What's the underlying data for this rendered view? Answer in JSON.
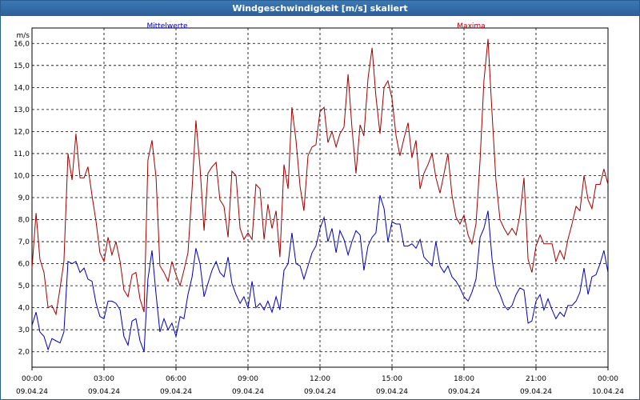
{
  "window": {
    "title": "Windgeschwindigkeit [m/s] skaliert"
  },
  "colors": {
    "mean": "#0000b4",
    "max": "#a00000",
    "grid": "#000000",
    "title_bg": "#2b609a"
  },
  "chart_data": {
    "type": "line",
    "title": "Windgeschwindigkeit [m/s] skaliert",
    "ylabel": "m/s",
    "xlabel": "",
    "ylim": [
      1.3,
      16.7
    ],
    "y_ticks": [
      "2,0",
      "3,0",
      "4,0",
      "5,0",
      "6,0",
      "7,0",
      "8,0",
      "9,0",
      "10,0",
      "11,0",
      "12,0",
      "13,0",
      "14,0",
      "15,0",
      "16,0"
    ],
    "y_tick_values": [
      2,
      3,
      4,
      5,
      6,
      7,
      8,
      9,
      10,
      11,
      12,
      13,
      14,
      15,
      16
    ],
    "xlim": [
      0,
      24
    ],
    "x_ticks": [
      {
        "hours": 0,
        "time": "00:00",
        "date": "09.04.24"
      },
      {
        "hours": 3,
        "time": "03:00",
        "date": "09.04.24"
      },
      {
        "hours": 6,
        "time": "06:00",
        "date": "09.04.24"
      },
      {
        "hours": 9,
        "time": "09:00",
        "date": "09.04.24"
      },
      {
        "hours": 12,
        "time": "12:00",
        "date": "09.04.24"
      },
      {
        "hours": 15,
        "time": "15:00",
        "date": "09.04.24"
      },
      {
        "hours": 18,
        "time": "18:00",
        "date": "09.04.24"
      },
      {
        "hours": 21,
        "time": "21:00",
        "date": "09.04.24"
      },
      {
        "hours": 24,
        "time": "00:00",
        "date": "10.04.24"
      }
    ],
    "grid": true,
    "series": [
      {
        "name": "Mittelwerte",
        "x": [
          0.0,
          0.17,
          0.33,
          0.5,
          0.67,
          0.83,
          1.0,
          1.17,
          1.33,
          1.5,
          1.67,
          1.83,
          2.0,
          2.17,
          2.33,
          2.5,
          2.67,
          2.83,
          3.0,
          3.17,
          3.33,
          3.5,
          3.67,
          3.83,
          4.0,
          4.17,
          4.33,
          4.5,
          4.67,
          4.83,
          5.0,
          5.17,
          5.33,
          5.5,
          5.67,
          5.83,
          6.0,
          6.17,
          6.33,
          6.5,
          6.67,
          6.83,
          7.0,
          7.17,
          7.33,
          7.5,
          7.67,
          7.83,
          8.0,
          8.17,
          8.33,
          8.5,
          8.67,
          8.83,
          9.0,
          9.17,
          9.33,
          9.5,
          9.67,
          9.83,
          10.0,
          10.17,
          10.33,
          10.5,
          10.67,
          10.83,
          11.0,
          11.17,
          11.33,
          11.5,
          11.67,
          11.83,
          12.0,
          12.17,
          12.33,
          12.5,
          12.67,
          12.83,
          13.0,
          13.17,
          13.33,
          13.5,
          13.67,
          13.83,
          14.0,
          14.17,
          14.33,
          14.5,
          14.67,
          14.83,
          15.0,
          15.17,
          15.33,
          15.5,
          15.67,
          15.83,
          16.0,
          16.17,
          16.33,
          16.5,
          16.67,
          16.83,
          17.0,
          17.17,
          17.33,
          17.5,
          17.67,
          17.83,
          18.0,
          18.17,
          18.33,
          18.5,
          18.67,
          18.83,
          19.0,
          19.17,
          19.33,
          19.5,
          19.67,
          19.83,
          20.0,
          20.17,
          20.33,
          20.5,
          20.67,
          20.83,
          21.0,
          21.17,
          21.33,
          21.5,
          21.67,
          21.83,
          22.0,
          22.17,
          22.33,
          22.5,
          22.67,
          22.83,
          23.0,
          23.17,
          23.33,
          23.5,
          23.67,
          23.83,
          24.0
        ],
        "y": [
          3.2,
          3.8,
          2.9,
          2.7,
          2.1,
          2.6,
          2.5,
          2.4,
          2.9,
          6.1,
          6.0,
          6.1,
          5.6,
          5.8,
          5.3,
          5.2,
          4.2,
          3.6,
          3.5,
          4.3,
          4.3,
          4.2,
          3.9,
          2.7,
          2.3,
          3.4,
          3.5,
          2.5,
          2.0,
          5.3,
          6.6,
          4.6,
          2.9,
          3.5,
          3.0,
          3.3,
          2.7,
          3.6,
          3.5,
          4.6,
          5.4,
          6.7,
          6.0,
          4.5,
          5.1,
          5.7,
          6.1,
          5.6,
          5.4,
          6.3,
          5.1,
          4.6,
          4.2,
          4.5,
          4.0,
          5.2,
          4.0,
          4.2,
          3.9,
          4.3,
          3.8,
          4.5,
          3.9,
          5.7,
          6.0,
          7.4,
          6.0,
          5.9,
          5.3,
          5.9,
          6.5,
          6.8,
          7.6,
          8.1,
          7.0,
          7.6,
          6.5,
          7.5,
          7.1,
          6.4,
          7.0,
          7.5,
          7.3,
          5.7,
          6.8,
          7.2,
          7.4,
          9.1,
          8.5,
          7.0,
          7.9,
          7.8,
          7.8,
          6.8,
          6.8,
          6.9,
          6.7,
          7.1,
          6.3,
          6.1,
          5.9,
          7.0,
          5.9,
          5.6,
          5.9,
          5.4,
          5.2,
          4.9,
          4.5,
          4.3,
          4.7,
          5.3,
          7.2,
          7.6,
          8.4,
          6.2,
          5.0,
          4.6,
          4.1,
          3.9,
          4.1,
          4.6,
          4.9,
          4.8,
          3.3,
          3.4,
          4.3,
          4.6,
          3.9,
          4.4,
          3.9,
          3.5,
          3.8,
          3.6,
          4.1,
          4.1,
          4.3,
          4.7,
          5.8,
          4.6,
          5.4,
          5.5,
          6.0,
          6.6,
          5.6
        ]
      },
      {
        "name": "Maxima",
        "x": [
          0.0,
          0.17,
          0.33,
          0.5,
          0.67,
          0.83,
          1.0,
          1.17,
          1.33,
          1.5,
          1.67,
          1.83,
          2.0,
          2.17,
          2.33,
          2.5,
          2.67,
          2.83,
          3.0,
          3.17,
          3.33,
          3.5,
          3.67,
          3.83,
          4.0,
          4.17,
          4.33,
          4.5,
          4.67,
          4.83,
          5.0,
          5.17,
          5.33,
          5.5,
          5.67,
          5.83,
          6.0,
          6.17,
          6.33,
          6.5,
          6.67,
          6.83,
          7.0,
          7.17,
          7.33,
          7.5,
          7.67,
          7.83,
          8.0,
          8.17,
          8.33,
          8.5,
          8.67,
          8.83,
          9.0,
          9.17,
          9.33,
          9.5,
          9.67,
          9.83,
          10.0,
          10.17,
          10.33,
          10.5,
          10.67,
          10.83,
          11.0,
          11.17,
          11.33,
          11.5,
          11.67,
          11.83,
          12.0,
          12.17,
          12.33,
          12.5,
          12.67,
          12.83,
          13.0,
          13.17,
          13.33,
          13.5,
          13.67,
          13.83,
          14.0,
          14.17,
          14.33,
          14.5,
          14.67,
          14.83,
          15.0,
          15.17,
          15.33,
          15.5,
          15.67,
          15.83,
          16.0,
          16.17,
          16.33,
          16.5,
          16.67,
          16.83,
          17.0,
          17.17,
          17.33,
          17.5,
          17.67,
          17.83,
          18.0,
          18.17,
          18.33,
          18.5,
          18.67,
          18.83,
          19.0,
          19.17,
          19.33,
          19.5,
          19.67,
          19.83,
          20.0,
          20.17,
          20.33,
          20.5,
          20.67,
          20.83,
          21.0,
          21.17,
          21.33,
          21.5,
          21.67,
          21.83,
          22.0,
          22.17,
          22.33,
          22.5,
          22.67,
          22.83,
          23.0,
          23.17,
          23.33,
          23.5,
          23.67,
          23.83,
          24.0
        ],
        "y": [
          5.8,
          8.3,
          6.2,
          5.6,
          4.0,
          4.1,
          3.7,
          4.9,
          6.1,
          11.0,
          9.8,
          11.9,
          9.9,
          9.9,
          10.4,
          9.1,
          7.9,
          6.5,
          6.1,
          7.2,
          6.4,
          7.0,
          6.1,
          4.8,
          4.5,
          5.5,
          5.6,
          4.4,
          3.8,
          10.7,
          11.6,
          9.9,
          5.9,
          5.6,
          5.2,
          6.1,
          5.5,
          5.0,
          5.7,
          6.5,
          9.4,
          12.5,
          10.4,
          7.5,
          10.1,
          10.4,
          10.6,
          8.9,
          8.6,
          7.2,
          10.2,
          10.0,
          7.6,
          7.1,
          7.4,
          7.1,
          9.6,
          9.4,
          7.1,
          8.7,
          7.6,
          8.4,
          6.3,
          10.5,
          9.4,
          13.1,
          11.6,
          9.5,
          8.4,
          10.9,
          11.3,
          11.4,
          12.9,
          13.1,
          11.5,
          12.0,
          11.3,
          11.9,
          12.2,
          14.6,
          12.2,
          10.1,
          12.3,
          11.8,
          14.4,
          15.8,
          13.6,
          11.9,
          14.0,
          14.3,
          13.5,
          11.8,
          10.9,
          11.7,
          12.4,
          10.8,
          11.6,
          9.4,
          10.1,
          10.5,
          11.0,
          9.9,
          9.2,
          10.1,
          11.0,
          9.1,
          8.1,
          7.8,
          8.2,
          7.3,
          6.9,
          7.8,
          10.7,
          14.3,
          16.2,
          12.8,
          9.8,
          8.0,
          7.6,
          7.3,
          7.6,
          7.3,
          8.2,
          9.9,
          6.2,
          5.6,
          6.8,
          7.3,
          6.9,
          6.9,
          6.9,
          6.1,
          6.6,
          6.2,
          7.1,
          7.8,
          8.6,
          8.4,
          10.0,
          8.9,
          8.5,
          9.6,
          9.6,
          10.3,
          9.6
        ]
      }
    ]
  }
}
